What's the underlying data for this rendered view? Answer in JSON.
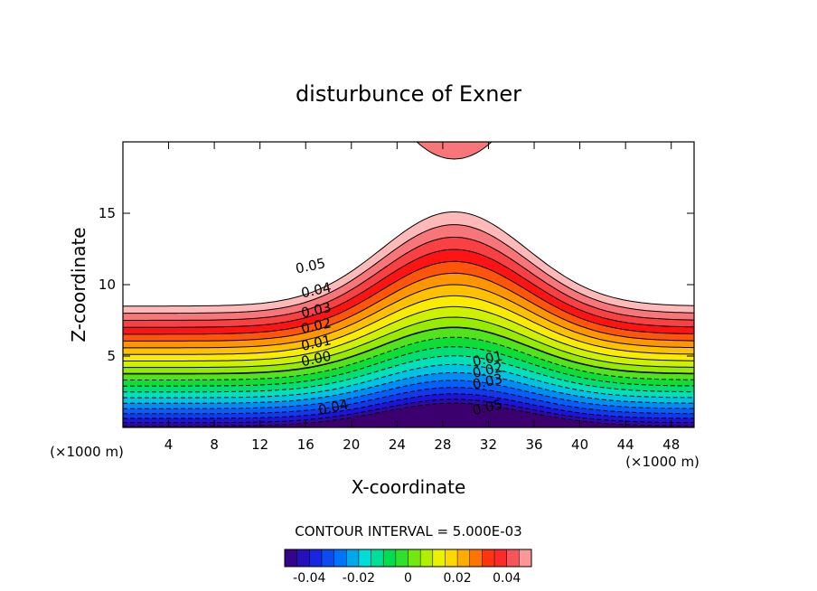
{
  "chart_data": {
    "type": "contour",
    "title": "disturbunce of Exner",
    "xlabel": "X-coordinate",
    "ylabel": "Z-coordinate",
    "x_unit": "(×1000 m)",
    "x_unit_right": "(×1000 m)",
    "xlim": [
      0,
      50
    ],
    "ylim": [
      0,
      20
    ],
    "x_ticks": [
      "4",
      "8",
      "12",
      "16",
      "20",
      "24",
      "28",
      "32",
      "36",
      "40",
      "44",
      "48"
    ],
    "x_tick_values": [
      4,
      8,
      12,
      16,
      20,
      24,
      28,
      32,
      36,
      40,
      44,
      48
    ],
    "y_ticks": [
      "5",
      "10",
      "15"
    ],
    "y_tick_values": [
      5,
      10,
      15
    ],
    "contour_interval_text": "CONTOUR INTERVAL = 5.000E-03",
    "contour_interval": 0.005,
    "level_range": [
      -0.05,
      0.05
    ],
    "contour_labels": [
      {
        "text": "0.05",
        "x": 16.5,
        "y": 11.0
      },
      {
        "text": "0.04",
        "x": 17.0,
        "y": 9.3
      },
      {
        "text": "0.03",
        "x": 17.0,
        "y": 7.9
      },
      {
        "text": "0.02",
        "x": 17.0,
        "y": 6.8
      },
      {
        "text": "0.01",
        "x": 17.0,
        "y": 5.6
      },
      {
        "text": "0.00",
        "x": 17.0,
        "y": 4.5
      },
      {
        "text": "0.01",
        "x": 32.0,
        "y": 4.5
      },
      {
        "text": "0.02",
        "x": 32.0,
        "y": 3.7
      },
      {
        "text": "0.03",
        "x": 32.0,
        "y": 2.9
      },
      {
        "text": "0.04",
        "x": 18.5,
        "y": 1.1
      },
      {
        "text": "0.05",
        "x": 32.0,
        "y": 1.1
      }
    ],
    "colorbar": {
      "ticks": [
        "-0.04",
        "-0.02",
        "0",
        "0.02",
        "0.04"
      ],
      "tick_values": [
        -0.04,
        -0.02,
        0,
        0.02,
        0.04
      ],
      "range": [
        -0.05,
        0.05
      ]
    }
  }
}
